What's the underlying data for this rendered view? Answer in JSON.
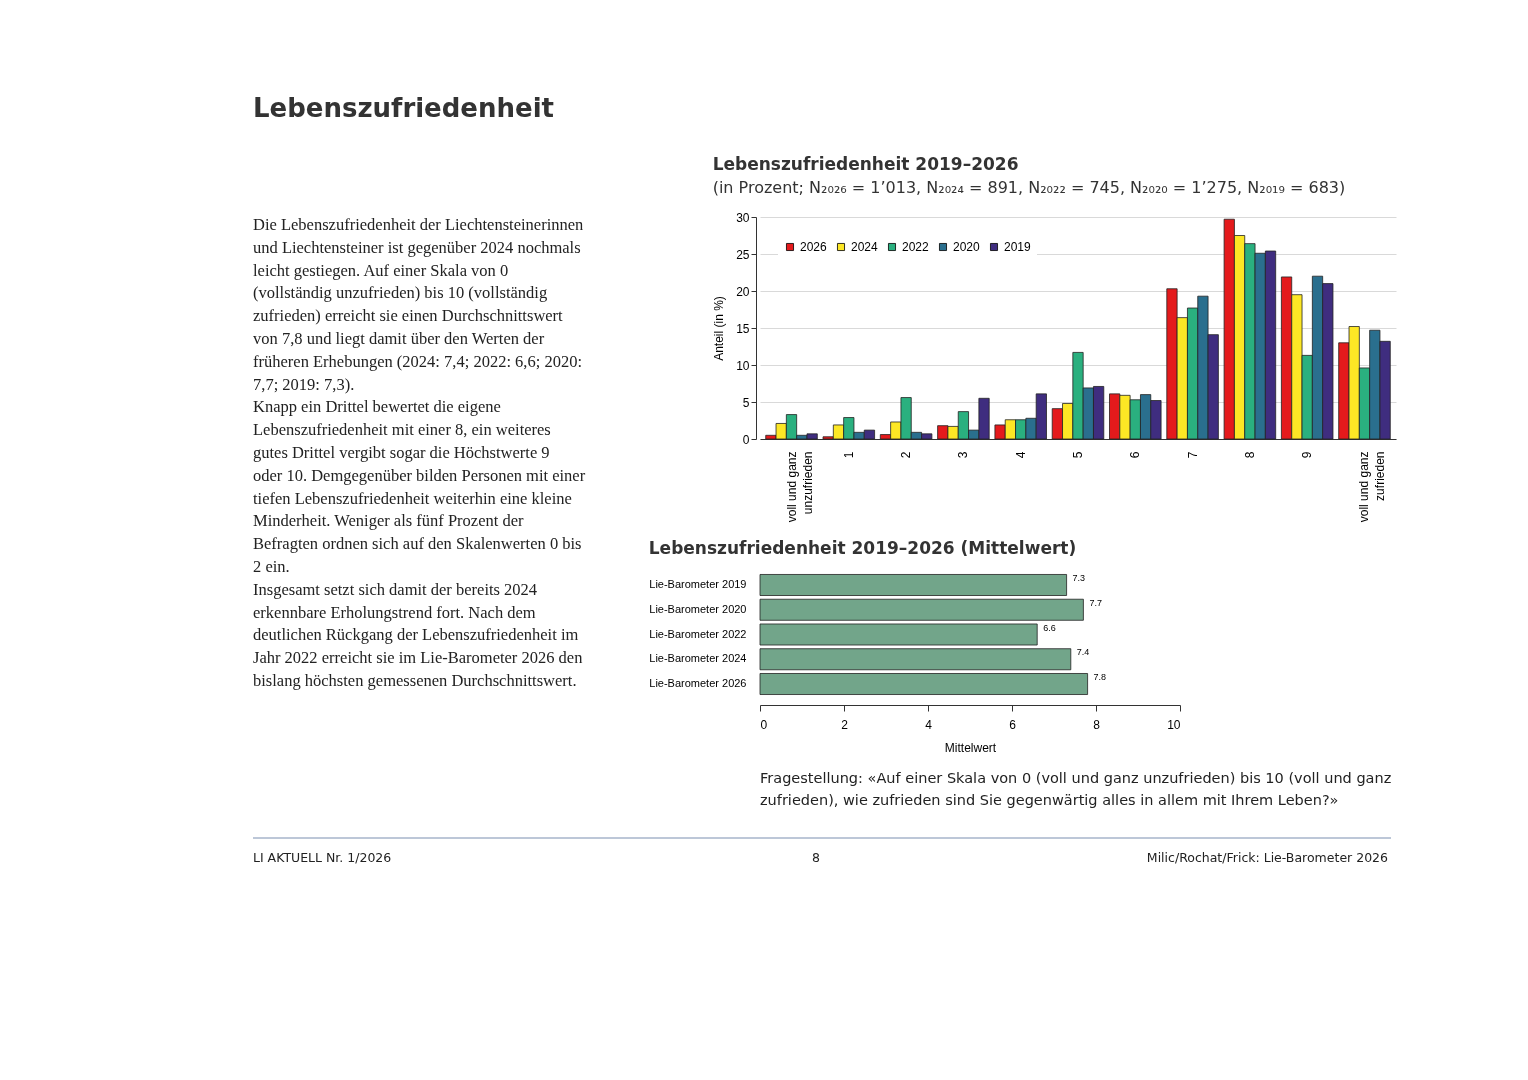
{
  "chart_data": [
    {
      "type": "bar",
      "title": "Lebenszufriedenheit 2019–2026",
      "subtitle": "(in Prozent; N₂₀₂₆ = 1’013, N₂₀₂₄ = 891, N₂₀₂₂ = 745, N₂₀₂₀ = 1’275, N₂₀₁₉ = 683)",
      "ylabel": "Anteil (in %)",
      "categories": [
        "voll und ganz unzufrieden",
        "1",
        "2",
        "3",
        "4",
        "5",
        "6",
        "7",
        "8",
        "9",
        "voll und ganz zufrieden"
      ],
      "series": [
        {
          "name": "2026",
          "color": "#e41a1c",
          "values": [
            0.5,
            0.3,
            0.6,
            1.8,
            1.9,
            4.1,
            6.1,
            20.3,
            29.7,
            21.9,
            13.0
          ]
        },
        {
          "name": "2024",
          "color": "#fde725",
          "values": [
            2.1,
            1.9,
            2.3,
            1.7,
            2.6,
            4.8,
            5.9,
            16.4,
            27.5,
            19.5,
            15.2
          ]
        },
        {
          "name": "2022",
          "color": "#2ab07f",
          "values": [
            3.3,
            2.9,
            5.6,
            3.7,
            2.6,
            11.7,
            5.3,
            17.7,
            26.4,
            11.3,
            9.6
          ]
        },
        {
          "name": "2020",
          "color": "#2a6f8e",
          "values": [
            0.5,
            0.9,
            0.9,
            1.2,
            2.8,
            6.9,
            6.0,
            19.3,
            25.1,
            22.0,
            14.7
          ]
        },
        {
          "name": "2019",
          "color": "#3f2d7f",
          "values": [
            0.7,
            1.2,
            0.7,
            5.5,
            6.1,
            7.1,
            5.2,
            14.1,
            25.4,
            21.0,
            13.2
          ]
        }
      ],
      "ylim": [
        0,
        30
      ],
      "yticks": [
        0,
        5,
        10,
        15,
        20,
        25,
        30
      ],
      "grid": "y",
      "legend": "top left",
      "annotations": [
        "Lebenszufriedenheit",
        "Die Lebenszufriedenheit der Liechtensteinerinnen und Liechtensteiner ist gegenüber 2024 nochmals leicht gestiegen. Auf einer Skala von 0 (vollständig unzufrieden) bis 10 (vollständig zufrieden) erreicht sie einen Durchschnittswert von 7,8 und liegt damit über den Werten der früheren Erhebungen (2024: 7,4; 2022: 6,6; 2020: 7,7; 2019: 7,3).",
        "Knapp ein Drittel bewertet die eigene Lebenszufriedenheit mit einer 8, ein weiteres gutes Drittel vergibt sogar die Höchstwerte 9 oder 10. Demgegenüber bilden Personen mit einer tiefen Lebenszufriedenheit weiterhin eine kleine Minderheit. Weniger als fünf Prozent der Befragten ordnen sich auf den Skalenwerten 0 bis 2 ein.",
        "Insgesamt setzt sich damit der bereits 2024 erkennbare Erholungstrend fort. Nach dem deutlichen Rückgang der Lebenszufriedenheit im Jahr 2022 erreicht sie im Lie-Barometer 2026 den bislang höchsten gemessenen Durchschnittswert.",
        "LI AKTUELL Nr. 1/2026",
        "8",
        "Milic/Rochat/Frick: Lie-Barometer 2026"
      ]
    },
    {
      "type": "bar",
      "orientation": "horizontal",
      "title": "Lebenszufriedenheit 2019–2026 (Mittelwert)",
      "xlabel": "Mittelwert",
      "categories": [
        "Lie-Barometer 2019",
        "Lie-Barometer 2020",
        "Lie-Barometer 2022",
        "Lie-Barometer 2024",
        "Lie-Barometer 2026"
      ],
      "values": [
        7.3,
        7.7,
        6.6,
        7.4,
        7.8
      ],
      "color": "#72a58a",
      "data_labels": true,
      "xlim": [
        0,
        10
      ],
      "xticks": [
        0,
        2,
        4,
        6,
        8,
        10
      ],
      "grid": false,
      "annotations": [
        "Fragestellung: «Auf einer Skala von 0 (voll und ganz unzufrieden) bis 10 (voll und ganz zufrieden), wie zufrieden sind Sie gegenwärtig alles in allem mit Ihrem Leben?»"
      ]
    }
  ]
}
